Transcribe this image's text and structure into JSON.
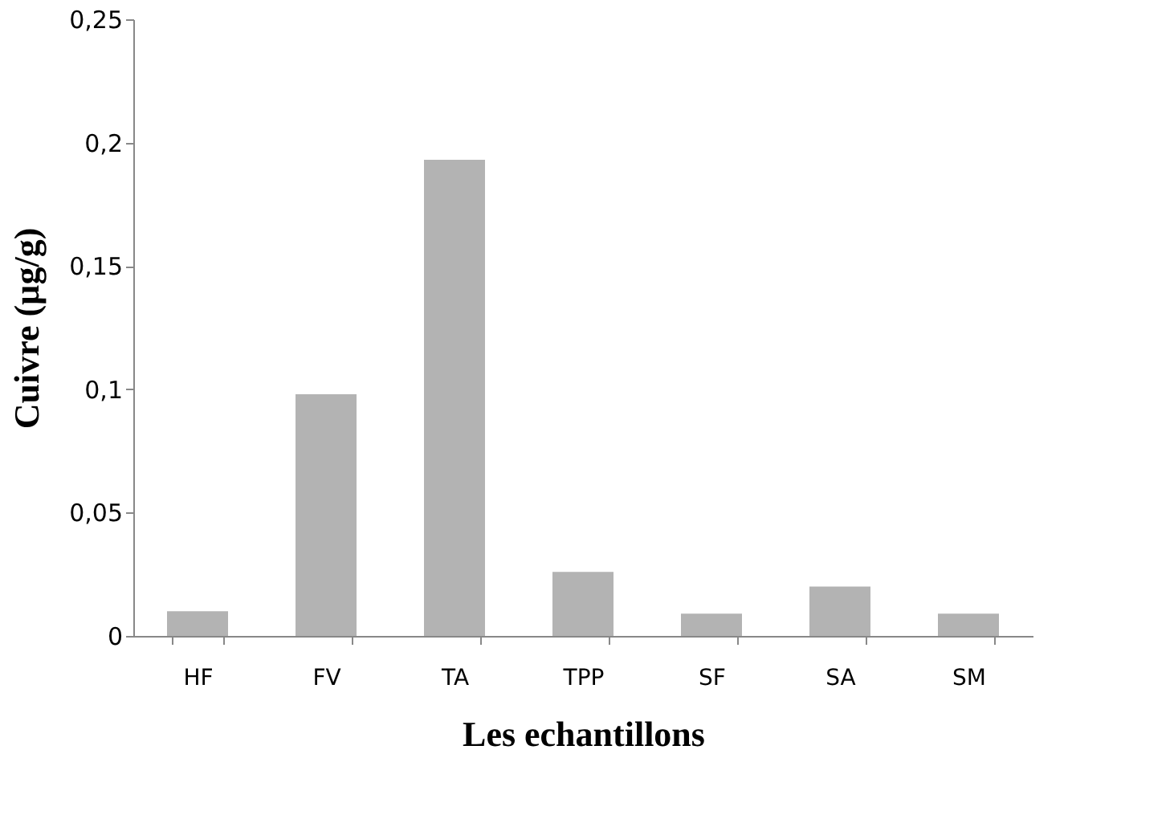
{
  "chart_data": {
    "type": "bar",
    "xlabel": "Les echantillons",
    "ylabel": "Cuivre (µg/g)",
    "categories": [
      "HF",
      "FV",
      "TA",
      "TPP",
      "SF",
      "SA",
      "SM"
    ],
    "values": [
      0.01,
      0.098,
      0.193,
      0.026,
      0.009,
      0.02,
      0.009
    ],
    "color": "#b3b3b3",
    "ylim": [
      0,
      0.25
    ],
    "yticks": [
      {
        "value": 0,
        "label": "0"
      },
      {
        "value": 0.05,
        "label": "0,05"
      },
      {
        "value": 0.1,
        "label": "0,1"
      },
      {
        "value": 0.15,
        "label": "0,15"
      },
      {
        "value": 0.2,
        "label": "0,2"
      },
      {
        "value": 0.25,
        "label": "0,25"
      }
    ],
    "grid": false
  }
}
